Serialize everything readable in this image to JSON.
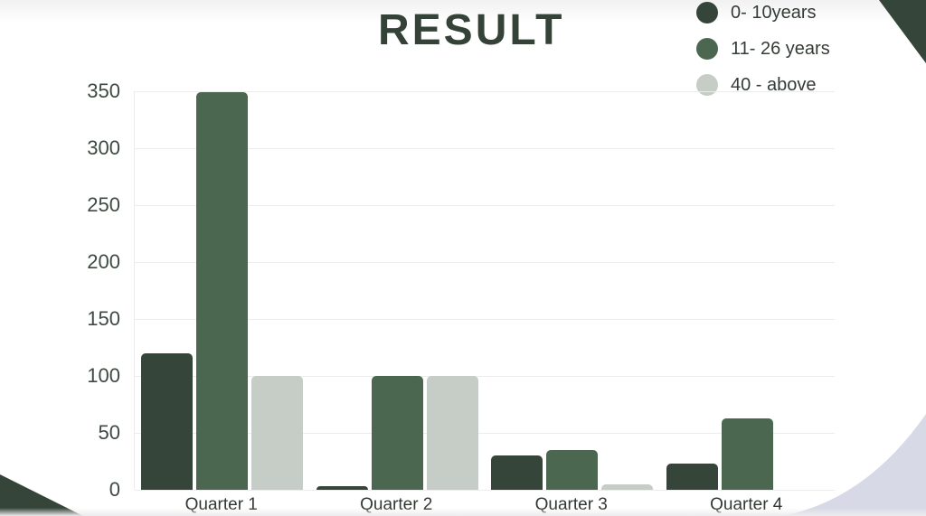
{
  "title": "RESULT",
  "colors": {
    "series_dark": "#36453a",
    "series_green": "#4c6750",
    "series_light": "#c5cdc6",
    "corner_wedge": "#36453a",
    "bottom_wave": "#d7dae6",
    "gridline": "#ececec",
    "y_axis_text": "#3d4a41",
    "x_axis_text": "#313832",
    "title_text": "#354238",
    "legend_text": "#343c36"
  },
  "legend": {
    "position": "top-right",
    "items": [
      {
        "label": "0- 10years",
        "color": "#36453a"
      },
      {
        "label": "11- 26 years",
        "color": "#4c6750"
      },
      {
        "label": "40 - above",
        "color": "#c5cdc6"
      }
    ]
  },
  "chart_data": {
    "type": "bar",
    "title": "RESULT",
    "xlabel": "",
    "ylabel": "",
    "categories": [
      "Quarter 1",
      "Quarter 2",
      "Quarter 3",
      "Quarter 4"
    ],
    "series": [
      {
        "name": "0- 10years",
        "color": "#36453a",
        "values": [
          120,
          3,
          30,
          23
        ]
      },
      {
        "name": "11- 26 years",
        "color": "#4c6750",
        "values": [
          349,
          100,
          35,
          63
        ]
      },
      {
        "name": "40 - above",
        "color": "#c5cdc6",
        "values": [
          100,
          100,
          5,
          0
        ]
      }
    ],
    "ylim": [
      0,
      350
    ],
    "yticks": [
      0,
      50,
      100,
      150,
      200,
      250,
      300,
      350
    ],
    "grid": true,
    "legend_position": "top-right"
  }
}
